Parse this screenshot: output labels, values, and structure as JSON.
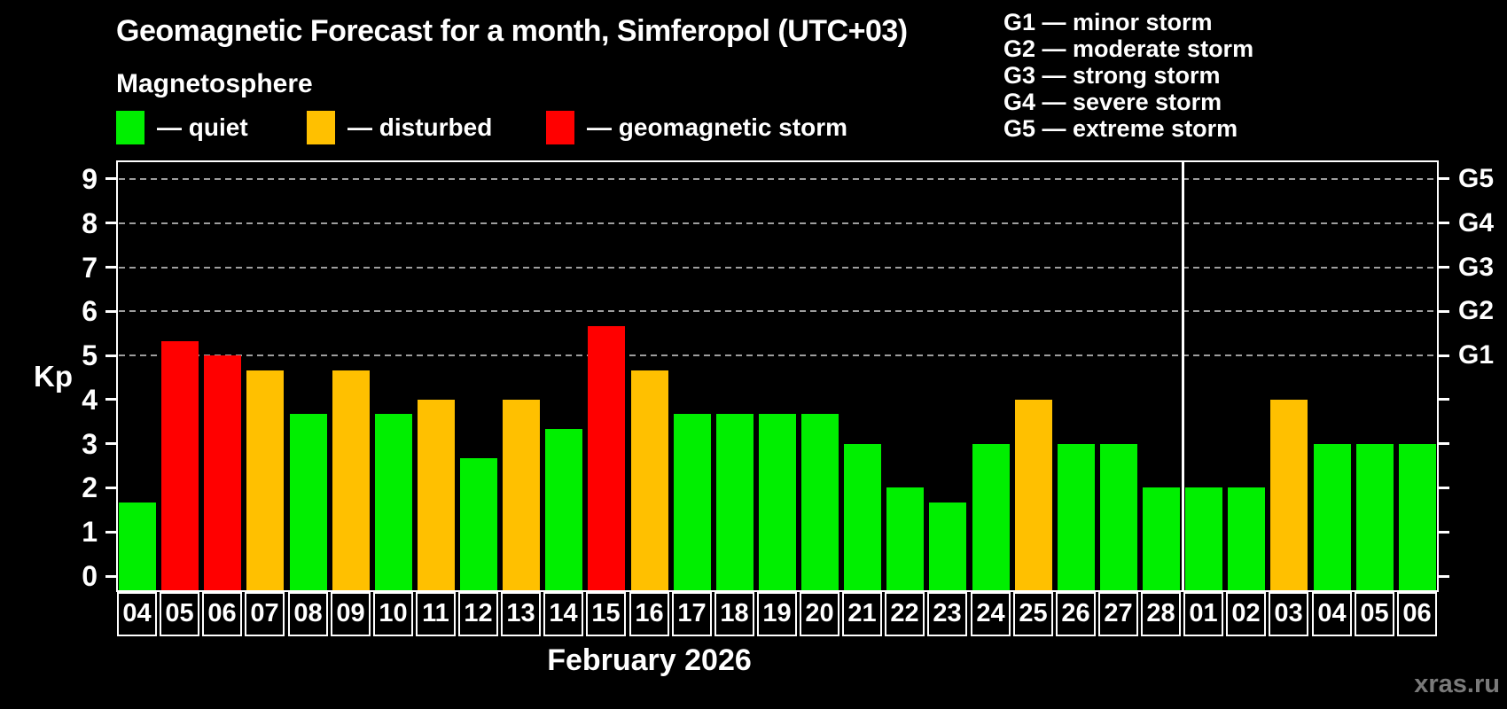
{
  "header": {
    "title": "Geomagnetic Forecast for a month, Simferopol (UTC+03)",
    "subtitle": "Magnetosphere"
  },
  "legend": {
    "items": [
      {
        "state": "quiet",
        "label": "— quiet",
        "color": "#00ef00"
      },
      {
        "state": "disturbed",
        "label": "— disturbed",
        "color": "#ffc000"
      },
      {
        "state": "storm",
        "label": "— geomagnetic storm",
        "color": "#ff0000"
      }
    ]
  },
  "g_legend": [
    "G1 — minor storm",
    "G2 — moderate storm",
    "G3 — strong storm",
    "G4 — severe storm",
    "G5 — extreme storm"
  ],
  "watermark": "xras.ru",
  "chart_data": {
    "type": "bar",
    "title": "Geomagnetic Forecast for a month, Simferopol (UTC+03)",
    "xlabel": "February 2026",
    "ylabel": "Kp",
    "ylim": [
      0,
      9
    ],
    "y_ticks": [
      0,
      1,
      2,
      3,
      4,
      5,
      6,
      7,
      8,
      9
    ],
    "grid": "dashed gray lines at Kp 5-9 (G1-G5 levels), legend position none",
    "categories": [
      "04",
      "05",
      "06",
      "07",
      "08",
      "09",
      "10",
      "11",
      "12",
      "13",
      "14",
      "15",
      "16",
      "17",
      "18",
      "19",
      "20",
      "21",
      "22",
      "23",
      "24",
      "25",
      "26",
      "27",
      "28",
      "01",
      "02",
      "03",
      "04",
      "05",
      "06"
    ],
    "values": [
      1.67,
      5.33,
      5.0,
      4.67,
      3.67,
      4.67,
      3.67,
      4.0,
      2.67,
      4.0,
      3.33,
      5.67,
      4.67,
      3.67,
      3.67,
      3.67,
      3.67,
      3.0,
      2.0,
      1.67,
      3.0,
      4.0,
      3.0,
      3.0,
      2.0,
      2.0,
      2.0,
      4.0,
      3.0,
      3.0,
      3.0
    ],
    "states": [
      "quiet",
      "storm",
      "storm",
      "disturbed",
      "quiet",
      "disturbed",
      "quiet",
      "disturbed",
      "quiet",
      "disturbed",
      "quiet",
      "storm",
      "disturbed",
      "quiet",
      "quiet",
      "quiet",
      "quiet",
      "quiet",
      "quiet",
      "quiet",
      "quiet",
      "disturbed",
      "quiet",
      "quiet",
      "quiet",
      "quiet",
      "quiet",
      "disturbed",
      "quiet",
      "quiet",
      "quiet"
    ],
    "state_colors": {
      "quiet": "#00ef00",
      "disturbed": "#ffc000",
      "storm": "#ff0000"
    },
    "g_levels": [
      {
        "label": "G1",
        "kp": 5
      },
      {
        "label": "G2",
        "kp": 6
      },
      {
        "label": "G3",
        "kp": 7
      },
      {
        "label": "G4",
        "kp": 8
      },
      {
        "label": "G5",
        "kp": 9
      }
    ],
    "month_separator_after_index": 24
  }
}
